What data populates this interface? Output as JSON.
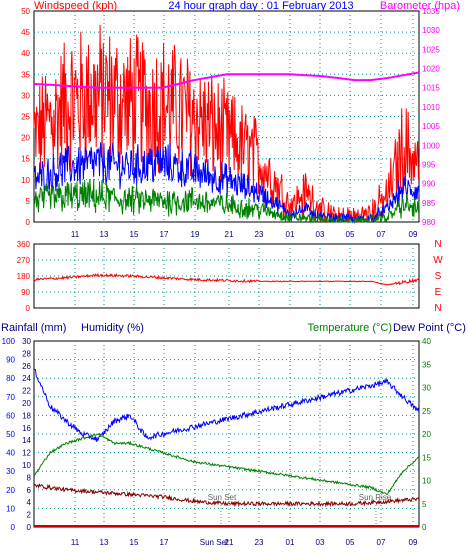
{
  "chart_data": [
    {
      "type": "line",
      "title": "24 hour graph day : 01 February 2013",
      "ylabel_left": "Windspeed (kph)",
      "ylabel_right": "Barometer (hpa)",
      "ylim_left": [
        0,
        50
      ],
      "ylim_right": [
        980,
        1035
      ],
      "yticks_left": [
        "0",
        "5",
        "10",
        "15",
        "20",
        "25",
        "30",
        "35",
        "40",
        "45",
        "50"
      ],
      "yticks_right": [
        "980",
        "985",
        "990",
        "995",
        "1000",
        "1005",
        "1010",
        "1015",
        "1020",
        "1025",
        "1030",
        "1035"
      ],
      "x_ticks": [
        "11",
        "13",
        "15",
        "17",
        "19",
        "21",
        "23",
        "01",
        "03",
        "05",
        "07",
        "09"
      ],
      "grid": true,
      "series": [
        {
          "name": "Windspeed (kph)",
          "color": "#ff0000",
          "x": [
            0,
            2,
            4,
            6,
            8,
            10,
            12,
            14,
            16,
            17,
            18,
            19,
            20,
            21,
            22,
            23,
            24
          ],
          "values": [
            20,
            28,
            30,
            28,
            28,
            25,
            20,
            15,
            4,
            7,
            2,
            1,
            1,
            2,
            6,
            18,
            14
          ]
        },
        {
          "name": "",
          "color": "#0000ff",
          "x": [
            0,
            2,
            4,
            6,
            8,
            10,
            12,
            14,
            16,
            17,
            18,
            19,
            20,
            21,
            22,
            23,
            24
          ],
          "values": [
            10,
            13,
            14,
            13,
            14,
            12,
            10,
            7,
            2,
            3,
            1,
            1,
            0.5,
            1,
            3,
            8,
            7
          ]
        },
        {
          "name": "",
          "color": "#008000",
          "x": [
            0,
            2,
            4,
            6,
            8,
            10,
            12,
            14,
            16,
            17,
            18,
            19,
            20,
            21,
            22,
            23,
            24
          ],
          "values": [
            5,
            6,
            6,
            5,
            5,
            5,
            4,
            3,
            1,
            1,
            0.3,
            0.3,
            0,
            0.5,
            1,
            4,
            3
          ]
        },
        {
          "name": "Barometer (hpa)",
          "color": "#ff00ff",
          "axis": "right",
          "x": [
            0,
            2,
            4,
            6,
            8,
            10,
            12,
            14,
            16,
            18,
            20,
            21,
            22,
            24
          ],
          "values": [
            1016,
            1015.5,
            1015,
            1015,
            1015,
            1017,
            1018.5,
            1018.5,
            1018.5,
            1018,
            1017,
            1017,
            1017.5,
            1019
          ]
        }
      ]
    },
    {
      "type": "line",
      "ylabel_right": [
        "N",
        "W",
        "S",
        "E",
        "N"
      ],
      "ylim": [
        0,
        360
      ],
      "yticks": [
        "0",
        "90",
        "180",
        "270",
        "360"
      ],
      "series": [
        {
          "name": "Wind direction",
          "color": "#ff0000",
          "x": [
            0,
            2,
            4,
            6,
            8,
            10,
            12,
            14,
            16,
            18,
            20,
            21,
            22,
            23,
            24
          ],
          "values": [
            160,
            170,
            185,
            180,
            170,
            160,
            155,
            150,
            150,
            150,
            150,
            150,
            130,
            145,
            160
          ]
        }
      ]
    },
    {
      "type": "line",
      "ylabel_left": "Rainfall (mm)",
      "ylabel_left2": "Humidity (%)",
      "ylabel_right": "Temperature (°C)",
      "ylabel_right2": "Dew Point (°C)",
      "ylim_humidity": [
        0,
        100
      ],
      "ylim_rain": [
        0,
        30
      ],
      "ylim_temp": [
        0,
        40
      ],
      "yticks_humidity": [
        "0",
        "10",
        "20",
        "30",
        "40",
        "50",
        "60",
        "70",
        "80",
        "90",
        "100"
      ],
      "yticks_rain": [
        "0",
        "2",
        "4",
        "6",
        "8",
        "10",
        "12",
        "14",
        "16",
        "18",
        "20",
        "22",
        "24",
        "26",
        "28",
        "30"
      ],
      "yticks_temp": [
        "0",
        "5",
        "10",
        "15",
        "20",
        "25",
        "30",
        "35",
        "40"
      ],
      "x_ticks": [
        "11",
        "13",
        "15",
        "17",
        "Sun Set",
        "21",
        "23",
        "01",
        "03",
        "05",
        "07",
        "09"
      ],
      "annotations": [
        "Sun Set",
        "Sun Rise"
      ],
      "series": [
        {
          "name": "Humidity (%)",
          "color": "#0000ff",
          "x": [
            0,
            1,
            2,
            3,
            4,
            5,
            6,
            7,
            8,
            10,
            12,
            14,
            16,
            18,
            20,
            21,
            22,
            23,
            24
          ],
          "values": [
            85,
            65,
            57,
            50,
            47,
            57,
            60,
            48,
            50,
            54,
            58,
            62,
            66,
            70,
            74,
            76,
            78,
            70,
            62
          ]
        },
        {
          "name": "Temperature (°C)",
          "color": "#008000",
          "x": [
            0,
            1,
            2,
            3,
            4,
            5,
            6,
            7,
            8,
            10,
            12,
            14,
            16,
            18,
            20,
            21,
            22,
            23,
            24
          ],
          "values": [
            11,
            16,
            18,
            19,
            20,
            18,
            18,
            17,
            16,
            14,
            13,
            12,
            11,
            10,
            9,
            8.5,
            7,
            12,
            15
          ]
        },
        {
          "name": "Dew Point (°C)",
          "color": "#800000",
          "x": [
            0,
            2,
            4,
            6,
            8,
            10,
            12,
            14,
            16,
            18,
            20,
            22,
            24
          ],
          "values": [
            9,
            8,
            7.5,
            7,
            6.5,
            5.5,
            5,
            5,
            5,
            5,
            5,
            5.5,
            6
          ]
        },
        {
          "name": "Rainfall (mm)",
          "color": "#cc0000",
          "x": [
            0,
            24
          ],
          "values": [
            0,
            0
          ]
        }
      ]
    }
  ]
}
